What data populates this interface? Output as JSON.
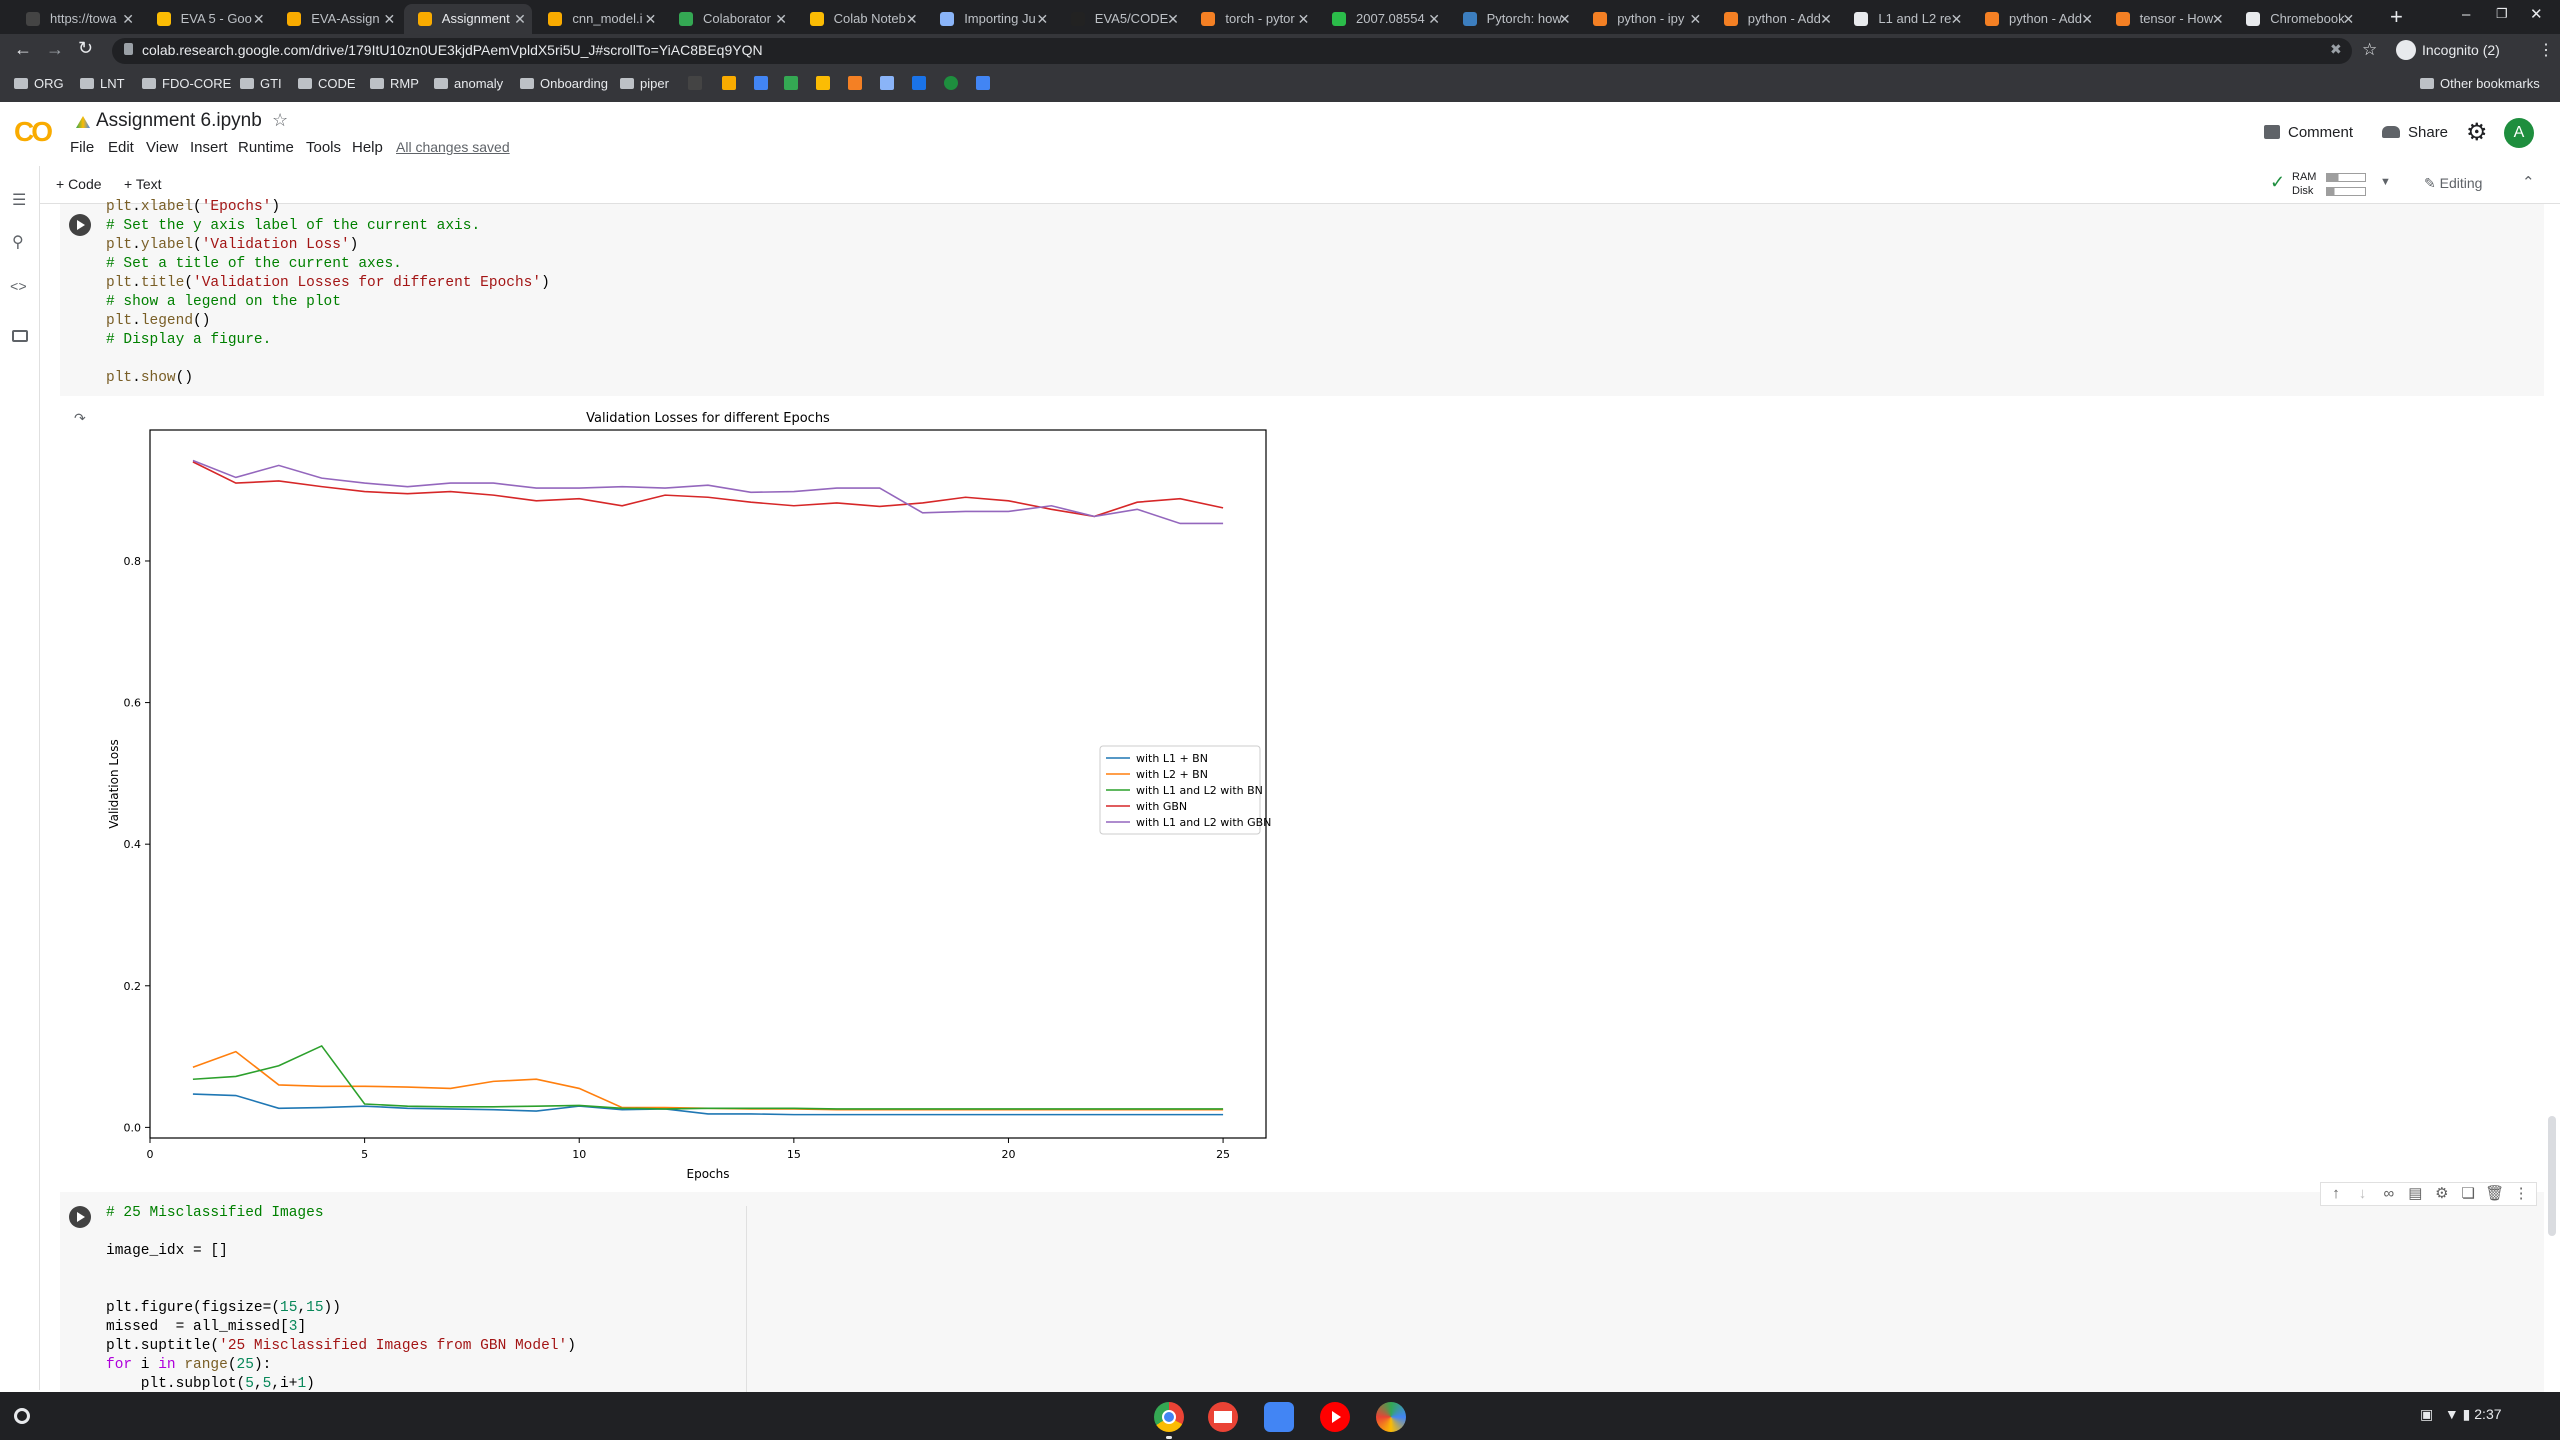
{
  "browser": {
    "tabs": [
      {
        "label": "https://towa",
        "color": "#444"
      },
      {
        "label": "EVA 5 - Goo",
        "color": "#fbbc04"
      },
      {
        "label": "EVA-Assign",
        "color": "#f9ab00"
      },
      {
        "label": "Assignment",
        "color": "#f9ab00",
        "active": true
      },
      {
        "label": "cnn_model.i",
        "color": "#f9ab00"
      },
      {
        "label": "Colaborator",
        "color": "#34a853"
      },
      {
        "label": "Colab Noteb",
        "color": "#fbbc04"
      },
      {
        "label": "Importing Ju",
        "color": "#8ab4f8"
      },
      {
        "label": "EVA5/CODE",
        "color": "#222"
      },
      {
        "label": "torch - pytor",
        "color": "#f48024"
      },
      {
        "label": "2007.08554",
        "color": "#2bbc4a"
      },
      {
        "label": "Pytorch: how",
        "color": "#3c7ebf"
      },
      {
        "label": "python - ipy",
        "color": "#f48024"
      },
      {
        "label": "python - Add",
        "color": "#f48024"
      },
      {
        "label": "L1 and L2 re",
        "color": "#e8eaed"
      },
      {
        "label": "python - Add",
        "color": "#f48024"
      },
      {
        "label": "tensor - How",
        "color": "#f48024"
      },
      {
        "label": "Chromebook",
        "color": "#e8eaed"
      }
    ],
    "new_tab": "+",
    "url": "colab.research.google.com/drive/179ItU10zn0UE3kjdPAemVpldX5ri5U_J#scrollTo=YiAC8BEq9YQN",
    "profile": "Incognito (2)",
    "bookmarks": [
      "ORG",
      "LNT",
      "FDO-CORE",
      "GTI",
      "CODE",
      "RMP",
      "anomaly",
      "Onboarding",
      "piper"
    ],
    "other_bookmarks": "Other bookmarks"
  },
  "colab": {
    "logo": "CO",
    "title": "Assignment 6.ipynb",
    "menu": [
      "File",
      "Edit",
      "View",
      "Insert",
      "Runtime",
      "Tools",
      "Help"
    ],
    "saved_status": "All changes saved",
    "comment_label": "Comment",
    "share_label": "Share",
    "avatar_letter": "A",
    "add_code": "+ Code",
    "add_text": "+ Text",
    "ram_label": "RAM",
    "disk_label": "Disk",
    "editing_label": "Editing"
  },
  "cell1_code": [
    [
      [
        "fn",
        "plt"
      ],
      [
        "",
        "."
      ],
      [
        "fn",
        "xlabel"
      ],
      [
        "",
        "("
      ],
      [
        "st",
        "'Epochs'"
      ],
      [
        "",
        ")"
      ]
    ],
    [
      [
        "cm",
        "# Set the y axis label of the current axis."
      ]
    ],
    [
      [
        "fn",
        "plt"
      ],
      [
        "",
        "."
      ],
      [
        "fn",
        "ylabel"
      ],
      [
        "",
        "("
      ],
      [
        "st",
        "'Validation Loss'"
      ],
      [
        "",
        ")"
      ]
    ],
    [
      [
        "cm",
        "# Set a title of the current axes."
      ]
    ],
    [
      [
        "fn",
        "plt"
      ],
      [
        "",
        "."
      ],
      [
        "fn",
        "title"
      ],
      [
        "",
        "("
      ],
      [
        "st",
        "'Validation Losses for different Epochs'"
      ],
      [
        "",
        ")"
      ]
    ],
    [
      [
        "cm",
        "# show a legend on the plot"
      ]
    ],
    [
      [
        "fn",
        "plt"
      ],
      [
        "",
        "."
      ],
      [
        "fn",
        "legend"
      ],
      [
        "",
        "()"
      ]
    ],
    [
      [
        "cm",
        "# Display a figure."
      ]
    ],
    [],
    [
      [
        "fn",
        "plt"
      ],
      [
        "",
        "."
      ],
      [
        "fn",
        "show"
      ],
      [
        "",
        "()"
      ]
    ]
  ],
  "cell2_code": [
    [
      [
        "cm",
        "# 25 Misclassified Images"
      ]
    ],
    [],
    [
      [
        "",
        "image_idx = []"
      ]
    ],
    [],
    [],
    [
      [
        "",
        "plt.figure(figsize=("
      ],
      [
        "nb",
        "15"
      ],
      [
        "",
        ","
      ],
      [
        "nb",
        "15"
      ],
      [
        "",
        "))"
      ]
    ],
    [
      [
        "",
        "missed  = all_missed["
      ],
      [
        "nb",
        "3"
      ],
      [
        "",
        "]"
      ]
    ],
    [
      [
        "",
        "plt.suptitle("
      ],
      [
        "st",
        "'25 Misclassified Images from GBN Model'"
      ],
      [
        "",
        ")"
      ]
    ],
    [
      [
        "kw",
        "for"
      ],
      [
        "",
        " i "
      ],
      [
        "kw",
        "in"
      ],
      [
        "",
        ""
      ],
      [
        "fn",
        " range"
      ],
      [
        "",
        "("
      ],
      [
        "nb",
        "25"
      ],
      [
        "",
        "):"
      ]
    ],
    [
      [
        "",
        "    plt.subplot("
      ],
      [
        "nb",
        "5"
      ],
      [
        "",
        ","
      ],
      [
        "nb",
        "5"
      ],
      [
        "",
        ",i+"
      ],
      [
        "nb",
        "1"
      ],
      [
        "",
        ")"
      ]
    ]
  ],
  "chart_data": {
    "type": "line",
    "title": "Validation Losses for different Epochs",
    "xlabel": "Epochs",
    "ylabel": "Validation Loss",
    "xlim": [
      0,
      26
    ],
    "ylim": [
      -0.015,
      0.985
    ],
    "xticks": [
      0,
      5,
      10,
      15,
      20,
      25
    ],
    "yticks": [
      0.0,
      0.2,
      0.4,
      0.6,
      0.8
    ],
    "legend_position": "center-right",
    "x": [
      1,
      2,
      3,
      4,
      5,
      6,
      7,
      8,
      9,
      10,
      11,
      12,
      13,
      14,
      15,
      16,
      17,
      18,
      19,
      20,
      21,
      22,
      23,
      24,
      25
    ],
    "series": [
      {
        "name": "with L1 + BN",
        "color": "#1f77b4",
        "values": [
          0.047,
          0.045,
          0.027,
          0.028,
          0.03,
          0.027,
          0.026,
          0.025,
          0.023,
          0.03,
          0.025,
          0.026,
          0.019,
          0.019,
          0.018,
          0.018,
          0.018,
          0.018,
          0.018,
          0.018,
          0.018,
          0.018,
          0.018,
          0.018,
          0.018
        ]
      },
      {
        "name": "with L2 + BN",
        "color": "#ff7f0e",
        "values": [
          0.085,
          0.107,
          0.06,
          0.058,
          0.058,
          0.057,
          0.055,
          0.065,
          0.068,
          0.055,
          0.028,
          0.028,
          0.027,
          0.026,
          0.026,
          0.025,
          0.025,
          0.025,
          0.025,
          0.025,
          0.025,
          0.025,
          0.025,
          0.025,
          0.025
        ]
      },
      {
        "name": "with L1 and L2 with BN",
        "color": "#2ca02c",
        "values": [
          0.068,
          0.072,
          0.087,
          0.115,
          0.033,
          0.03,
          0.029,
          0.029,
          0.03,
          0.031,
          0.027,
          0.026,
          0.027,
          0.027,
          0.027,
          0.026,
          0.026,
          0.026,
          0.026,
          0.026,
          0.026,
          0.026,
          0.026,
          0.026,
          0.026
        ]
      },
      {
        "name": "with GBN",
        "color": "#d62728",
        "values": [
          0.94,
          0.91,
          0.913,
          0.905,
          0.898,
          0.895,
          0.898,
          0.893,
          0.885,
          0.888,
          0.878,
          0.893,
          0.89,
          0.883,
          0.878,
          0.882,
          0.877,
          0.882,
          0.89,
          0.885,
          0.873,
          0.863,
          0.883,
          0.888,
          0.875
        ]
      },
      {
        "name": "with L1 and L2 with GBN",
        "color": "#9467bd",
        "values": [
          0.942,
          0.918,
          0.935,
          0.917,
          0.91,
          0.905,
          0.91,
          0.91,
          0.903,
          0.903,
          0.905,
          0.903,
          0.907,
          0.897,
          0.898,
          0.903,
          0.903,
          0.868,
          0.87,
          0.87,
          0.878,
          0.863,
          0.873,
          0.853,
          0.853
        ]
      }
    ]
  },
  "system": {
    "time": "2:37"
  }
}
